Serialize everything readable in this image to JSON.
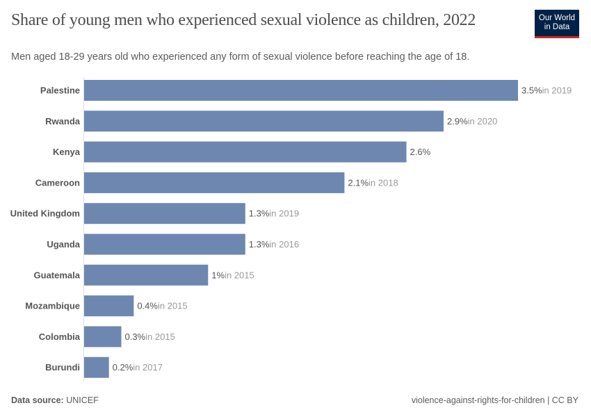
{
  "header": {
    "title": "Share of young men who experienced sexual violence as children, 2022",
    "subtitle": "Men aged 18-29 years old who experienced any form of sexual violence before reaching the age of 18.",
    "logo": "Our World in Data"
  },
  "footer": {
    "source_label": "Data source:",
    "source_value": "UNICEF",
    "right": "violence-against-rights-for-children | CC BY"
  },
  "colors": {
    "bar": "#6d87b0",
    "logo_bg": "#002147",
    "logo_accent": "#ce261e"
  },
  "chart_data": {
    "type": "bar",
    "orientation": "horizontal",
    "unit": "%",
    "categories": [
      "Palestine",
      "Rwanda",
      "Kenya",
      "Cameroon",
      "United Kingdom",
      "Uganda",
      "Guatemala",
      "Mozambique",
      "Colombia",
      "Burundi"
    ],
    "values": [
      3.5,
      2.9,
      2.6,
      2.1,
      1.3,
      1.3,
      1,
      0.4,
      0.3,
      0.2
    ],
    "value_labels": [
      "3.5%",
      "2.9%",
      "2.6%",
      "2.1%",
      "1.3%",
      "1.3%",
      "1%",
      "0.4%",
      "0.3%",
      "0.2%"
    ],
    "year_notes": [
      "in 2019",
      "in 2020",
      "",
      "in 2018",
      "in 2019",
      "in 2016",
      "in 2015",
      "in 2015",
      "in 2015",
      "in 2017"
    ],
    "xlim": [
      0,
      3.5
    ],
    "grid": false
  }
}
